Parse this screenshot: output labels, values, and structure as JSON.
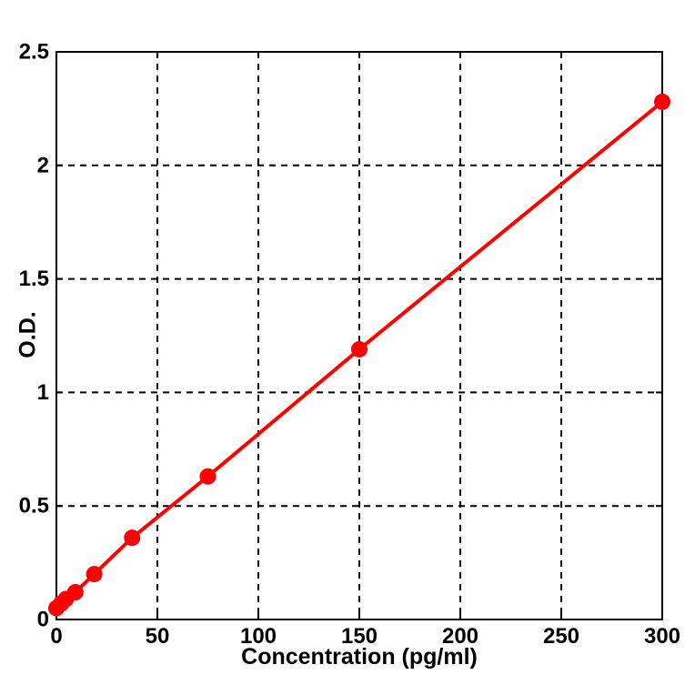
{
  "chart_data": {
    "type": "line",
    "description": "Standard curve scatter-line plot with filled circle markers",
    "xlabel": "Concentration (pg/ml)",
    "ylabel": "O.D.",
    "x": [
      0,
      2.34,
      4.69,
      9.38,
      18.75,
      37.5,
      75,
      150,
      300
    ],
    "y": [
      0.05,
      0.07,
      0.09,
      0.12,
      0.2,
      0.36,
      0.63,
      1.19,
      2.28
    ],
    "xlim": [
      0,
      300
    ],
    "ylim": [
      0,
      2.5
    ],
    "x_ticks": [
      0,
      50,
      100,
      150,
      200,
      250,
      300
    ],
    "x_tick_labels": [
      "0",
      "50",
      "100",
      "150",
      "200",
      "250",
      "300"
    ],
    "y_ticks": [
      0,
      0.5,
      1,
      1.5,
      2,
      2.5
    ],
    "y_tick_labels": [
      "0",
      "0.5",
      "1",
      "1.5",
      "2",
      "2.5"
    ],
    "grid": "dashed",
    "legend": "none",
    "colors": {
      "line": "#ff0000",
      "marker": "#ff0000",
      "axis": "#000000",
      "grid": "#000000",
      "background": "#ffffff"
    },
    "marker_radius": 9
  }
}
